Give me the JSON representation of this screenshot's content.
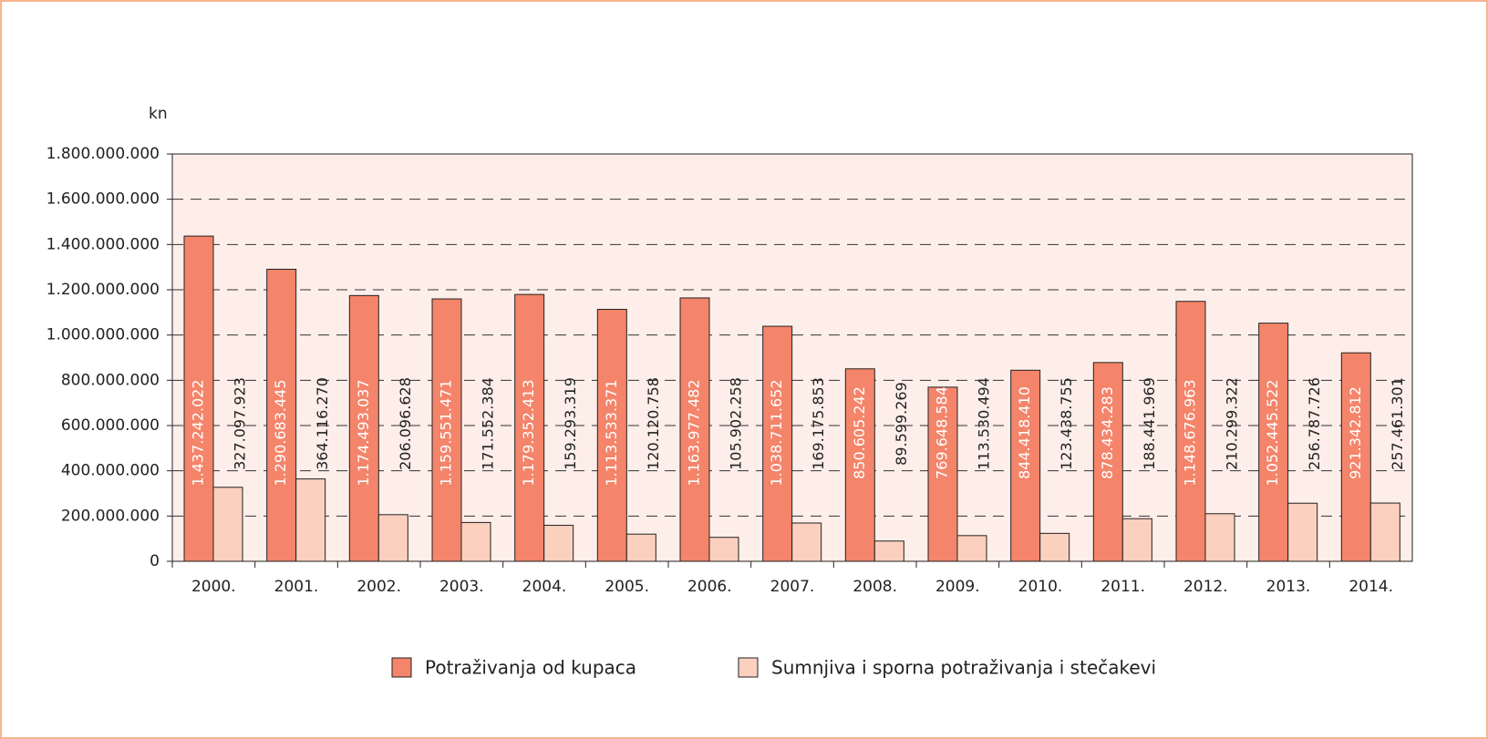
{
  "chart_data": {
    "type": "bar",
    "y_label": "kn",
    "categories": [
      "2000.",
      "2001.",
      "2002.",
      "2003.",
      "2004.",
      "2005.",
      "2006.",
      "2007.",
      "2008.",
      "2009.",
      "2010.",
      "2011.",
      "2012.",
      "2013.",
      "2014."
    ],
    "series": [
      {
        "name": "Potraživanja od kupaca",
        "color": "#f4846a",
        "values": [
          1437242022,
          1290683445,
          1174493037,
          1159551471,
          1179352413,
          1113533371,
          1163977482,
          1038711652,
          850605242,
          769648584,
          844418410,
          878434283,
          1148676963,
          1052445522,
          921342812
        ],
        "value_labels": [
          "1.437.242.022",
          "1.290.683.445",
          "1.174.493.037",
          "1.159.551.471",
          "1.179.352.413",
          "1.113.533.371",
          "1.163.977.482",
          "1.038.711.652",
          "850.605.242",
          "769.648.584",
          "844.418.410",
          "878.434.283",
          "1.148.676.963",
          "1.052.445.522",
          "921.342.812"
        ]
      },
      {
        "name": "Sumnjiva i sporna potraživanja i stečakevi",
        "color": "#fbd0bf",
        "values": [
          327097923,
          364116270,
          206096628,
          171552384,
          159293319,
          120120758,
          105902258,
          169175853,
          89599269,
          113530494,
          123438755,
          188441969,
          210299322,
          256787726,
          257461301
        ],
        "value_labels": [
          "327.097.923",
          "364.116.270",
          "206.096.628",
          "171.552.384",
          "159.293.319",
          "120.120.758",
          "105.902.258",
          "169.175.853",
          "89.599.269",
          "113.530.494",
          "123.438.755",
          "188.441.969",
          "210.299.322",
          "256.787.726",
          "257.461.301"
        ]
      }
    ],
    "ylim": [
      0,
      1800000000
    ],
    "yticks": [
      0,
      {
        "value": 200000000,
        "label": "200.000.000"
      },
      {
        "value": 400000000,
        "label": "400.000.000"
      },
      {
        "value": 600000000,
        "label": "600.000.000"
      },
      {
        "value": 800000000,
        "label": "800.000.000"
      },
      {
        "value": 1000000000,
        "label": "1.000.000.000"
      },
      {
        "value": 1200000000,
        "label": "1.200.000.000"
      },
      {
        "value": 1400000000,
        "label": "1.400.000.000"
      },
      {
        "value": 1600000000,
        "label": "1.600.000.000"
      },
      {
        "value": 1800000000,
        "label": "1.800.000.000"
      }
    ],
    "grid": true
  }
}
